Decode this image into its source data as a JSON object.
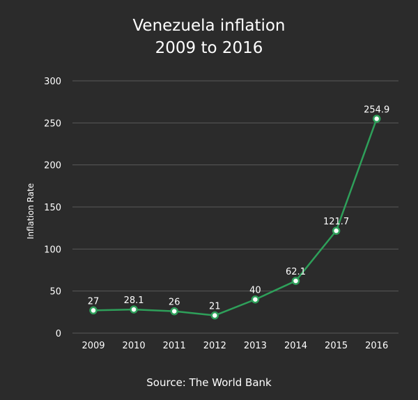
{
  "title_line_1": "Venezuela inflation",
  "title_line_2": "2009 to 2016",
  "source": "Source: The World Bank",
  "colors": {
    "background": "#2b2b2b",
    "line": "#2ea05a",
    "grid": "#5a5a5a",
    "text": "#ffffff"
  },
  "chart_data": {
    "type": "line",
    "title": "Venezuela inflation 2009 to 2016",
    "xlabel": "",
    "ylabel": "Inflation Rate",
    "categories": [
      "2009",
      "2010",
      "2011",
      "2012",
      "2013",
      "2014",
      "2015",
      "2016"
    ],
    "values": [
      27,
      28.1,
      26,
      21,
      40,
      62.1,
      121.7,
      254.9
    ],
    "data_labels": [
      "27",
      "28.1",
      "26",
      "21",
      "40",
      "62.1",
      "121.7",
      "254.9"
    ],
    "ylim": [
      0,
      300
    ],
    "yticks": [
      0,
      50,
      100,
      150,
      200,
      250,
      300
    ],
    "grid": true,
    "legend": false
  }
}
